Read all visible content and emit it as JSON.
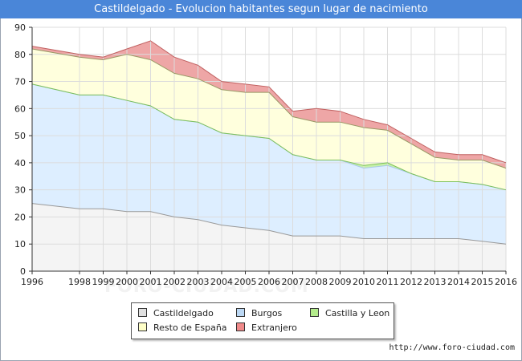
{
  "title": "Castildelgado - Evolucion habitantes segun lugar de nacimiento",
  "footer": "http://www.foro-ciudad.com",
  "watermark": "FORO-CIUDAD.COM",
  "legend": {
    "castildelgado": "Castildelgado",
    "burgos": "Burgos",
    "castilla_leon": "Castilla y Leon",
    "resto": "Resto de España",
    "extranjero": "Extranjero"
  },
  "colors": {
    "castildelgado_fill": "#f4f4f4",
    "castildelgado_line": "#999999",
    "castildelgado_swatch": "#e0e0e0",
    "burgos_fill": "#ddeeff",
    "burgos_line": "#a9c8e8",
    "burgos_swatch": "#bcd8f4",
    "castilla_fill": "#c6f0a8",
    "castilla_line": "#7cc05a",
    "castilla_swatch": "#b4ec8c",
    "resto_fill": "#ffffdd",
    "resto_line": "#999966",
    "resto_swatch": "#ffffc8",
    "extranjero_fill": "#eea6a6",
    "extranjero_line": "#c06060",
    "extranjero_swatch": "#f08a8a",
    "title_bg": "#4a86d8"
  },
  "chart_data": {
    "type": "area",
    "stacked": true,
    "x": [
      1996,
      1998,
      1999,
      2000,
      2001,
      2002,
      2003,
      2004,
      2005,
      2006,
      2007,
      2008,
      2009,
      2010,
      2011,
      2012,
      2013,
      2014,
      2015,
      2016
    ],
    "xticks": [
      "1996",
      "1998",
      "1999",
      "2000",
      "2001",
      "2002",
      "2003",
      "2004",
      "2005",
      "2006",
      "2007",
      "2008",
      "2009",
      "2010",
      "2011",
      "2012",
      "2013",
      "2014",
      "2015",
      "2016"
    ],
    "yticks": [
      "0",
      "10",
      "20",
      "30",
      "40",
      "50",
      "60",
      "70",
      "80",
      "90"
    ],
    "ylim": [
      0,
      90
    ],
    "grid": true,
    "legend_position": "bottom",
    "series": [
      {
        "name": "Castildelgado",
        "key": "castildelgado",
        "values": [
          25,
          23,
          23,
          22,
          22,
          20,
          19,
          17,
          16,
          15,
          13,
          13,
          13,
          12,
          12,
          12,
          12,
          12,
          11,
          10
        ]
      },
      {
        "name": "Burgos",
        "key": "burgos",
        "values": [
          44,
          42,
          42,
          41,
          39,
          36,
          36,
          34,
          34,
          34,
          30,
          28,
          28,
          26,
          27,
          24,
          21,
          21,
          21,
          20
        ]
      },
      {
        "name": "Castilla y Leon",
        "key": "castilla",
        "values": [
          0,
          0,
          0,
          0,
          0,
          0,
          0,
          0,
          0,
          0,
          0,
          0,
          0,
          1,
          1,
          0,
          0,
          0,
          0,
          0
        ]
      },
      {
        "name": "Resto de España",
        "key": "resto",
        "values": [
          13,
          14,
          13,
          17,
          17,
          17,
          16,
          16,
          16,
          17,
          14,
          14,
          14,
          14,
          12,
          11,
          9,
          8,
          9,
          8
        ]
      },
      {
        "name": "Extranjero",
        "key": "extranjero",
        "values": [
          1,
          1,
          1,
          2,
          7,
          6,
          5,
          3,
          3,
          2,
          2,
          5,
          4,
          3,
          2,
          2,
          2,
          2,
          2,
          2
        ]
      }
    ]
  }
}
